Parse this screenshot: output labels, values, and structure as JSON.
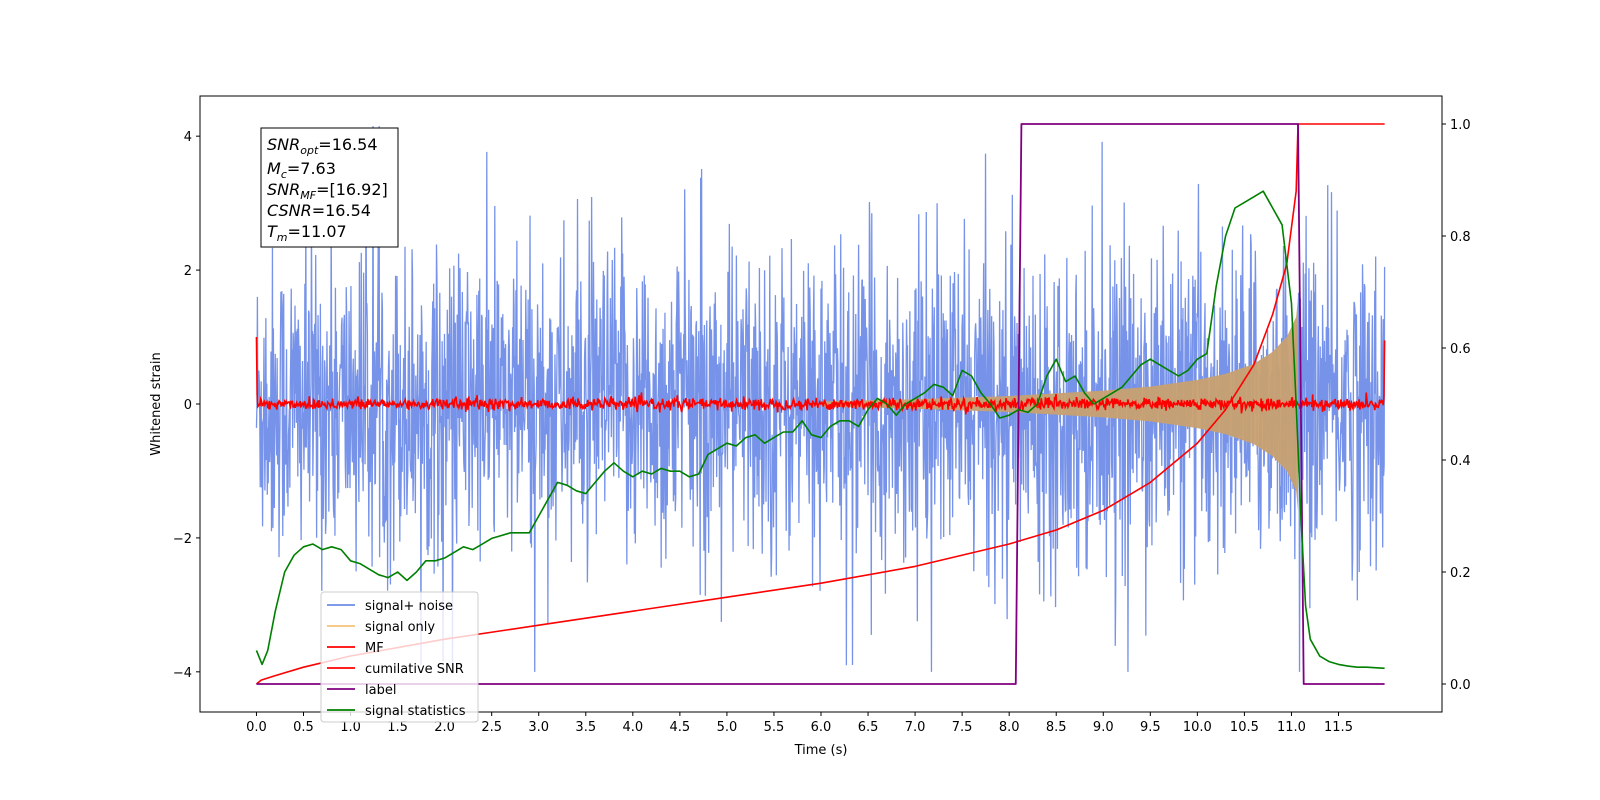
{
  "chart_data": {
    "type": "line",
    "xlabel": "Time (s)",
    "ylabel": "Whitened strain",
    "xlim": [
      -0.6,
      12.6
    ],
    "ylim": [
      -4.6,
      4.6
    ],
    "y2lim": [
      -0.05,
      1.05
    ],
    "x_ticks": [
      0.0,
      0.5,
      1.0,
      1.5,
      2.0,
      2.5,
      3.0,
      3.5,
      4.0,
      4.5,
      5.0,
      5.5,
      6.0,
      6.5,
      7.0,
      7.5,
      8.0,
      8.5,
      9.0,
      9.5,
      10.0,
      10.5,
      11.0,
      11.5
    ],
    "x_tick_labels": [
      "0.0",
      "0.5",
      "1.0",
      "1.5",
      "2.0",
      "2.5",
      "3.0",
      "3.5",
      "4.0",
      "4.5",
      "5.0",
      "5.5",
      "6.0",
      "6.5",
      "7.0",
      "7.5",
      "8.0",
      "8.5",
      "9.0",
      "9.5",
      "10.0",
      "10.5",
      "11.0",
      "11.5"
    ],
    "y_ticks": [
      -4,
      -2,
      0,
      2,
      4
    ],
    "y_tick_labels": [
      "−4",
      "−2",
      "0",
      "2",
      "4"
    ],
    "y2_ticks": [
      0.0,
      0.2,
      0.4,
      0.6,
      0.8,
      1.0
    ],
    "y2_tick_labels": [
      "0.0",
      "0.2",
      "0.4",
      "0.6",
      "0.8",
      "1.0"
    ],
    "info_box": {
      "snr_opt_base": "SNR",
      "snr_opt_sub": "opt",
      "snr_opt_value": "=16.54",
      "mc_base": "M",
      "mc_sub": "c",
      "mc_value": "=7.63",
      "snr_mf_base": "SNR",
      "snr_mf_sub": "MF",
      "snr_mf_value": "=[16.92]",
      "csnr_base": "CSNR",
      "csnr_value": "=16.54",
      "tm_base": "T",
      "tm_sub": "m",
      "tm_value": "=11.07"
    },
    "legend": [
      {
        "label": "signal+ noise",
        "color": "#6f8de8"
      },
      {
        "label": "signal only",
        "color": "#f5c27a"
      },
      {
        "label": "MF",
        "color": "#ff0000"
      },
      {
        "label": "cumilative SNR",
        "color": "#ff0000"
      },
      {
        "label": "label",
        "color": "#800080"
      },
      {
        "label": "signal statistics",
        "color": "#008000"
      }
    ],
    "series": [
      {
        "name": "signal+ noise",
        "color": "#6f8de8",
        "axis": "left",
        "style": "dense noise band, approx ±1σ with spikes to ±4",
        "x_range": [
          0.0,
          11.99
        ]
      },
      {
        "name": "signal only",
        "color": "#c8a070",
        "axis": "left",
        "style": "chirp envelope growing from ~0 to ~±1.1 at 11.07 s",
        "envelope_x": [
          6.0,
          7.0,
          8.0,
          9.0,
          9.5,
          10.0,
          10.3,
          10.6,
          10.8,
          10.95,
          11.05,
          11.07
        ],
        "envelope_y": [
          0.04,
          0.07,
          0.12,
          0.2,
          0.26,
          0.36,
          0.45,
          0.6,
          0.78,
          1.0,
          1.3,
          1.6
        ]
      },
      {
        "name": "MF",
        "color": "#ff0000",
        "axis": "left",
        "style": "noise around 0 with amplitude ~0.1, edge spikes to 1.0",
        "x_range": [
          0.0,
          11.99
        ]
      },
      {
        "name": "cumilative SNR",
        "color": "#ff0000",
        "axis": "right",
        "x": [
          0.0,
          0.05,
          0.2,
          0.5,
          1.0,
          2.0,
          3.0,
          4.0,
          5.0,
          6.0,
          7.0,
          8.0,
          8.5,
          9.0,
          9.5,
          10.0,
          10.3,
          10.6,
          10.8,
          10.95,
          11.05,
          11.07,
          11.99
        ],
        "y": [
          0.0,
          0.007,
          0.015,
          0.03,
          0.05,
          0.08,
          0.105,
          0.13,
          0.155,
          0.18,
          0.21,
          0.25,
          0.275,
          0.31,
          0.36,
          0.43,
          0.49,
          0.57,
          0.66,
          0.75,
          0.88,
          1.0,
          1.0
        ]
      },
      {
        "name": "label",
        "color": "#800080",
        "axis": "right",
        "x": [
          0.0,
          8.07,
          8.13,
          11.07,
          11.13,
          11.99
        ],
        "y": [
          0.0,
          0.0,
          1.0,
          1.0,
          0.0,
          0.0
        ]
      },
      {
        "name": "signal statistics",
        "color": "#008000",
        "axis": "right",
        "x": [
          0.0,
          0.06,
          0.12,
          0.2,
          0.3,
          0.4,
          0.5,
          0.6,
          0.7,
          0.8,
          0.9,
          1.0,
          1.1,
          1.2,
          1.3,
          1.4,
          1.5,
          1.6,
          1.7,
          1.8,
          1.9,
          2.0,
          2.1,
          2.2,
          2.3,
          2.4,
          2.5,
          2.6,
          2.7,
          2.8,
          2.9,
          3.0,
          3.1,
          3.2,
          3.3,
          3.4,
          3.5,
          3.6,
          3.7,
          3.8,
          3.9,
          4.0,
          4.1,
          4.2,
          4.3,
          4.4,
          4.5,
          4.6,
          4.7,
          4.8,
          4.9,
          5.0,
          5.1,
          5.2,
          5.3,
          5.4,
          5.5,
          5.6,
          5.7,
          5.8,
          5.9,
          6.0,
          6.1,
          6.2,
          6.3,
          6.4,
          6.5,
          6.6,
          6.7,
          6.8,
          6.9,
          7.0,
          7.1,
          7.2,
          7.3,
          7.4,
          7.5,
          7.6,
          7.7,
          7.8,
          7.9,
          8.0,
          8.1,
          8.2,
          8.3,
          8.4,
          8.5,
          8.6,
          8.7,
          8.8,
          8.9,
          9.0,
          9.1,
          9.2,
          9.3,
          9.4,
          9.5,
          9.6,
          9.7,
          9.8,
          9.9,
          10.0,
          10.1,
          10.2,
          10.3,
          10.4,
          10.5,
          10.6,
          10.7,
          10.8,
          10.9,
          11.0,
          11.05,
          11.1,
          11.15,
          11.2,
          11.3,
          11.4,
          11.5,
          11.6,
          11.7,
          11.8,
          11.99
        ],
        "y": [
          0.06,
          0.035,
          0.06,
          0.13,
          0.2,
          0.23,
          0.245,
          0.25,
          0.24,
          0.245,
          0.24,
          0.22,
          0.215,
          0.205,
          0.195,
          0.19,
          0.2,
          0.185,
          0.2,
          0.22,
          0.22,
          0.225,
          0.235,
          0.245,
          0.24,
          0.25,
          0.26,
          0.265,
          0.27,
          0.27,
          0.27,
          0.3,
          0.33,
          0.36,
          0.355,
          0.345,
          0.34,
          0.36,
          0.38,
          0.395,
          0.38,
          0.37,
          0.38,
          0.375,
          0.385,
          0.38,
          0.38,
          0.37,
          0.375,
          0.41,
          0.42,
          0.43,
          0.425,
          0.44,
          0.445,
          0.43,
          0.44,
          0.45,
          0.45,
          0.47,
          0.445,
          0.44,
          0.46,
          0.47,
          0.47,
          0.46,
          0.49,
          0.51,
          0.5,
          0.48,
          0.5,
          0.51,
          0.52,
          0.535,
          0.53,
          0.515,
          0.56,
          0.55,
          0.52,
          0.5,
          0.475,
          0.48,
          0.49,
          0.485,
          0.5,
          0.55,
          0.58,
          0.54,
          0.55,
          0.52,
          0.5,
          0.51,
          0.52,
          0.53,
          0.55,
          0.57,
          0.58,
          0.57,
          0.56,
          0.55,
          0.56,
          0.58,
          0.59,
          0.71,
          0.8,
          0.85,
          0.86,
          0.87,
          0.88,
          0.85,
          0.82,
          0.68,
          0.5,
          0.3,
          0.14,
          0.08,
          0.05,
          0.04,
          0.035,
          0.032,
          0.03,
          0.03,
          0.028
        ]
      }
    ]
  }
}
